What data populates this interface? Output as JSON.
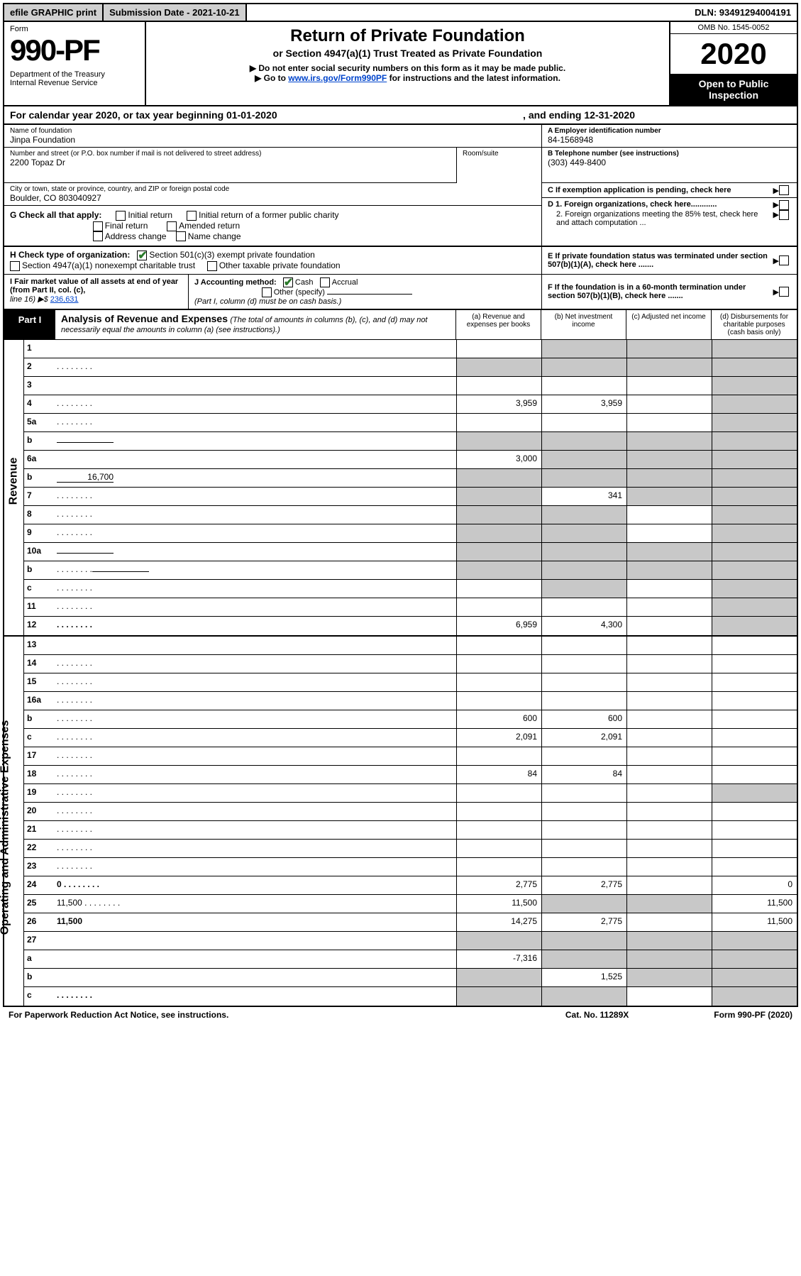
{
  "topbar": {
    "efile": "efile GRAPHIC print",
    "subdate_label": "Submission Date - 2021-10-21",
    "dln": "DLN: 93491294004191"
  },
  "header": {
    "form_word": "Form",
    "form_num": "990-PF",
    "dept": "Department of the Treasury\nInternal Revenue Service",
    "title": "Return of Private Foundation",
    "sub1": "or Section 4947(a)(1) Trust Treated as Private Foundation",
    "sub2": "▶ Do not enter social security numbers on this form as it may be made public.",
    "sub3_pre": "▶ Go to ",
    "sub3_link": "www.irs.gov/Form990PF",
    "sub3_post": " for instructions and the latest information.",
    "omb": "OMB No. 1545-0052",
    "year": "2020",
    "open": "Open to Public Inspection"
  },
  "calyear": {
    "text": "For calendar year 2020, or tax year beginning 01-01-2020",
    "ending": ", and ending 12-31-2020"
  },
  "info": {
    "name_lbl": "Name of foundation",
    "name_val": "Jinpa Foundation",
    "addr_lbl": "Number and street (or P.O. box number if mail is not delivered to street address)",
    "addr_val": "2200 Topaz Dr",
    "room_lbl": "Room/suite",
    "city_lbl": "City or town, state or province, country, and ZIP or foreign postal code",
    "city_val": "Boulder, CO  803040927",
    "a_lbl": "A Employer identification number",
    "a_val": "84-1568948",
    "b_lbl": "B Telephone number (see instructions)",
    "b_val": "(303) 449-8400",
    "c_lbl": "C If exemption application is pending, check here",
    "d1": "D 1. Foreign organizations, check here............",
    "d2": "2. Foreign organizations meeting the 85% test, check here and attach computation ...",
    "e": "E  If private foundation status was terminated under section 507(b)(1)(A), check here .......",
    "f": "F  If the foundation is in a 60-month termination under section 507(b)(1)(B), check here ......."
  },
  "g": {
    "label": "G Check all that apply:",
    "initial": "Initial return",
    "initial_former": "Initial return of a former public charity",
    "final": "Final return",
    "amended": "Amended return",
    "addr_chg": "Address change",
    "name_chg": "Name change"
  },
  "h": {
    "label": "H Check type of organization:",
    "s501": "Section 501(c)(3) exempt private foundation",
    "s4947": "Section 4947(a)(1) nonexempt charitable trust",
    "other_tax": "Other taxable private foundation"
  },
  "i": {
    "label": "I Fair market value of all assets at end of year (from Part II, col. (c),",
    "line16": "line 16) ▶$ ",
    "val": "236,631"
  },
  "j": {
    "label": "J Accounting method:",
    "cash": "Cash",
    "accrual": "Accrual",
    "other": "Other (specify)",
    "note": "(Part I, column (d) must be on cash basis.)"
  },
  "part1": {
    "label": "Part I",
    "title": "Analysis of Revenue and Expenses",
    "note": "(The total of amounts in columns (b), (c), and (d) may not necessarily equal the amounts in column (a) (see instructions).)",
    "col_a": "(a)  Revenue and expenses per books",
    "col_b": "(b)  Net investment income",
    "col_c": "(c)  Adjusted net income",
    "col_d": "(d)  Disbursements for charitable purposes (cash basis only)"
  },
  "side": {
    "revenue": "Revenue",
    "opex": "Operating and Administrative Expenses"
  },
  "rows": [
    {
      "n": "1",
      "d": "",
      "a": "",
      "b": "",
      "c": "",
      "ga": false,
      "gb": true,
      "gc": true,
      "gd": true
    },
    {
      "n": "2",
      "d": "",
      "dots": true,
      "a": "",
      "b": "",
      "c": "",
      "ga": true,
      "gb": true,
      "gc": true,
      "gd": true
    },
    {
      "n": "3",
      "d": "",
      "a": "",
      "b": "",
      "c": "",
      "ga": false,
      "gb": false,
      "gc": false,
      "gd": true
    },
    {
      "n": "4",
      "d": "",
      "dots": true,
      "a": "3,959",
      "b": "3,959",
      "c": "",
      "ga": false,
      "gb": false,
      "gc": false,
      "gd": true
    },
    {
      "n": "5a",
      "d": "",
      "dots": true,
      "a": "",
      "b": "",
      "c": "",
      "ga": false,
      "gb": false,
      "gc": false,
      "gd": true
    },
    {
      "n": "b",
      "d": "",
      "underline": true,
      "a": "",
      "b": "",
      "c": "",
      "ga": true,
      "gb": true,
      "gc": true,
      "gd": true
    },
    {
      "n": "6a",
      "d": "",
      "a": "3,000",
      "b": "",
      "c": "",
      "ga": false,
      "gb": true,
      "gc": true,
      "gd": true
    },
    {
      "n": "b",
      "d": "",
      "underline": true,
      "uval": "16,700",
      "a": "",
      "b": "",
      "c": "",
      "ga": true,
      "gb": true,
      "gc": true,
      "gd": true
    },
    {
      "n": "7",
      "d": "",
      "dots": true,
      "a": "",
      "b": "341",
      "c": "",
      "ga": true,
      "gb": false,
      "gc": true,
      "gd": true
    },
    {
      "n": "8",
      "d": "",
      "dots": true,
      "a": "",
      "b": "",
      "c": "",
      "ga": true,
      "gb": true,
      "gc": false,
      "gd": true
    },
    {
      "n": "9",
      "d": "",
      "dots": true,
      "a": "",
      "b": "",
      "c": "",
      "ga": true,
      "gb": true,
      "gc": false,
      "gd": true
    },
    {
      "n": "10a",
      "d": "",
      "underline": true,
      "a": "",
      "b": "",
      "c": "",
      "ga": true,
      "gb": true,
      "gc": true,
      "gd": true
    },
    {
      "n": "b",
      "d": "",
      "dots": true,
      "underline": true,
      "a": "",
      "b": "",
      "c": "",
      "ga": true,
      "gb": true,
      "gc": true,
      "gd": true
    },
    {
      "n": "c",
      "d": "",
      "dots": true,
      "a": "",
      "b": "",
      "c": "",
      "ga": false,
      "gb": true,
      "gc": false,
      "gd": true
    },
    {
      "n": "11",
      "d": "",
      "dots": true,
      "a": "",
      "b": "",
      "c": "",
      "ga": false,
      "gb": false,
      "gc": false,
      "gd": true
    },
    {
      "n": "12",
      "d": "",
      "bold": true,
      "dots": true,
      "a": "6,959",
      "b": "4,300",
      "c": "",
      "ga": false,
      "gb": false,
      "gc": false,
      "gd": true
    }
  ],
  "oprows": [
    {
      "n": "13",
      "d": "",
      "a": "",
      "b": "",
      "c": ""
    },
    {
      "n": "14",
      "d": "",
      "dots": true,
      "a": "",
      "b": "",
      "c": ""
    },
    {
      "n": "15",
      "d": "",
      "dots": true,
      "a": "",
      "b": "",
      "c": ""
    },
    {
      "n": "16a",
      "d": "",
      "dots": true,
      "a": "",
      "b": "",
      "c": ""
    },
    {
      "n": "b",
      "d": "",
      "dots": true,
      "a": "600",
      "b": "600",
      "c": ""
    },
    {
      "n": "c",
      "d": "",
      "dots": true,
      "a": "2,091",
      "b": "2,091",
      "c": ""
    },
    {
      "n": "17",
      "d": "",
      "dots": true,
      "a": "",
      "b": "",
      "c": ""
    },
    {
      "n": "18",
      "d": "",
      "dots": true,
      "a": "84",
      "b": "84",
      "c": ""
    },
    {
      "n": "19",
      "d": "",
      "dots": true,
      "a": "",
      "b": "",
      "c": "",
      "gd": true
    },
    {
      "n": "20",
      "d": "",
      "dots": true,
      "a": "",
      "b": "",
      "c": ""
    },
    {
      "n": "21",
      "d": "",
      "dots": true,
      "a": "",
      "b": "",
      "c": ""
    },
    {
      "n": "22",
      "d": "",
      "dots": true,
      "a": "",
      "b": "",
      "c": ""
    },
    {
      "n": "23",
      "d": "",
      "dots": true,
      "a": "",
      "b": "",
      "c": ""
    },
    {
      "n": "24",
      "d": "0",
      "bold": true,
      "dots": true,
      "a": "2,775",
      "b": "2,775",
      "c": ""
    },
    {
      "n": "25",
      "d": "11,500",
      "dots": true,
      "a": "11,500",
      "b": "",
      "c": "",
      "gb": true,
      "gc": true
    },
    {
      "n": "26",
      "d": "11,500",
      "bold": true,
      "a": "14,275",
      "b": "2,775",
      "c": ""
    },
    {
      "n": "27",
      "d": "",
      "a": "",
      "b": "",
      "c": "",
      "ga": true,
      "gb": true,
      "gc": true,
      "gd": true
    },
    {
      "n": "a",
      "d": "",
      "bold": true,
      "a": "-7,316",
      "b": "",
      "c": "",
      "gb": true,
      "gc": true,
      "gd": true
    },
    {
      "n": "b",
      "d": "",
      "bold": true,
      "a": "",
      "b": "1,525",
      "c": "",
      "ga": true,
      "gc": true,
      "gd": true
    },
    {
      "n": "c",
      "d": "",
      "bold": true,
      "dots": true,
      "a": "",
      "b": "",
      "c": "",
      "ga": true,
      "gb": true,
      "gd": true
    }
  ],
  "footer": {
    "left": "For Paperwork Reduction Act Notice, see instructions.",
    "center": "Cat. No. 11289X",
    "right": "Form 990-PF (2020)"
  }
}
